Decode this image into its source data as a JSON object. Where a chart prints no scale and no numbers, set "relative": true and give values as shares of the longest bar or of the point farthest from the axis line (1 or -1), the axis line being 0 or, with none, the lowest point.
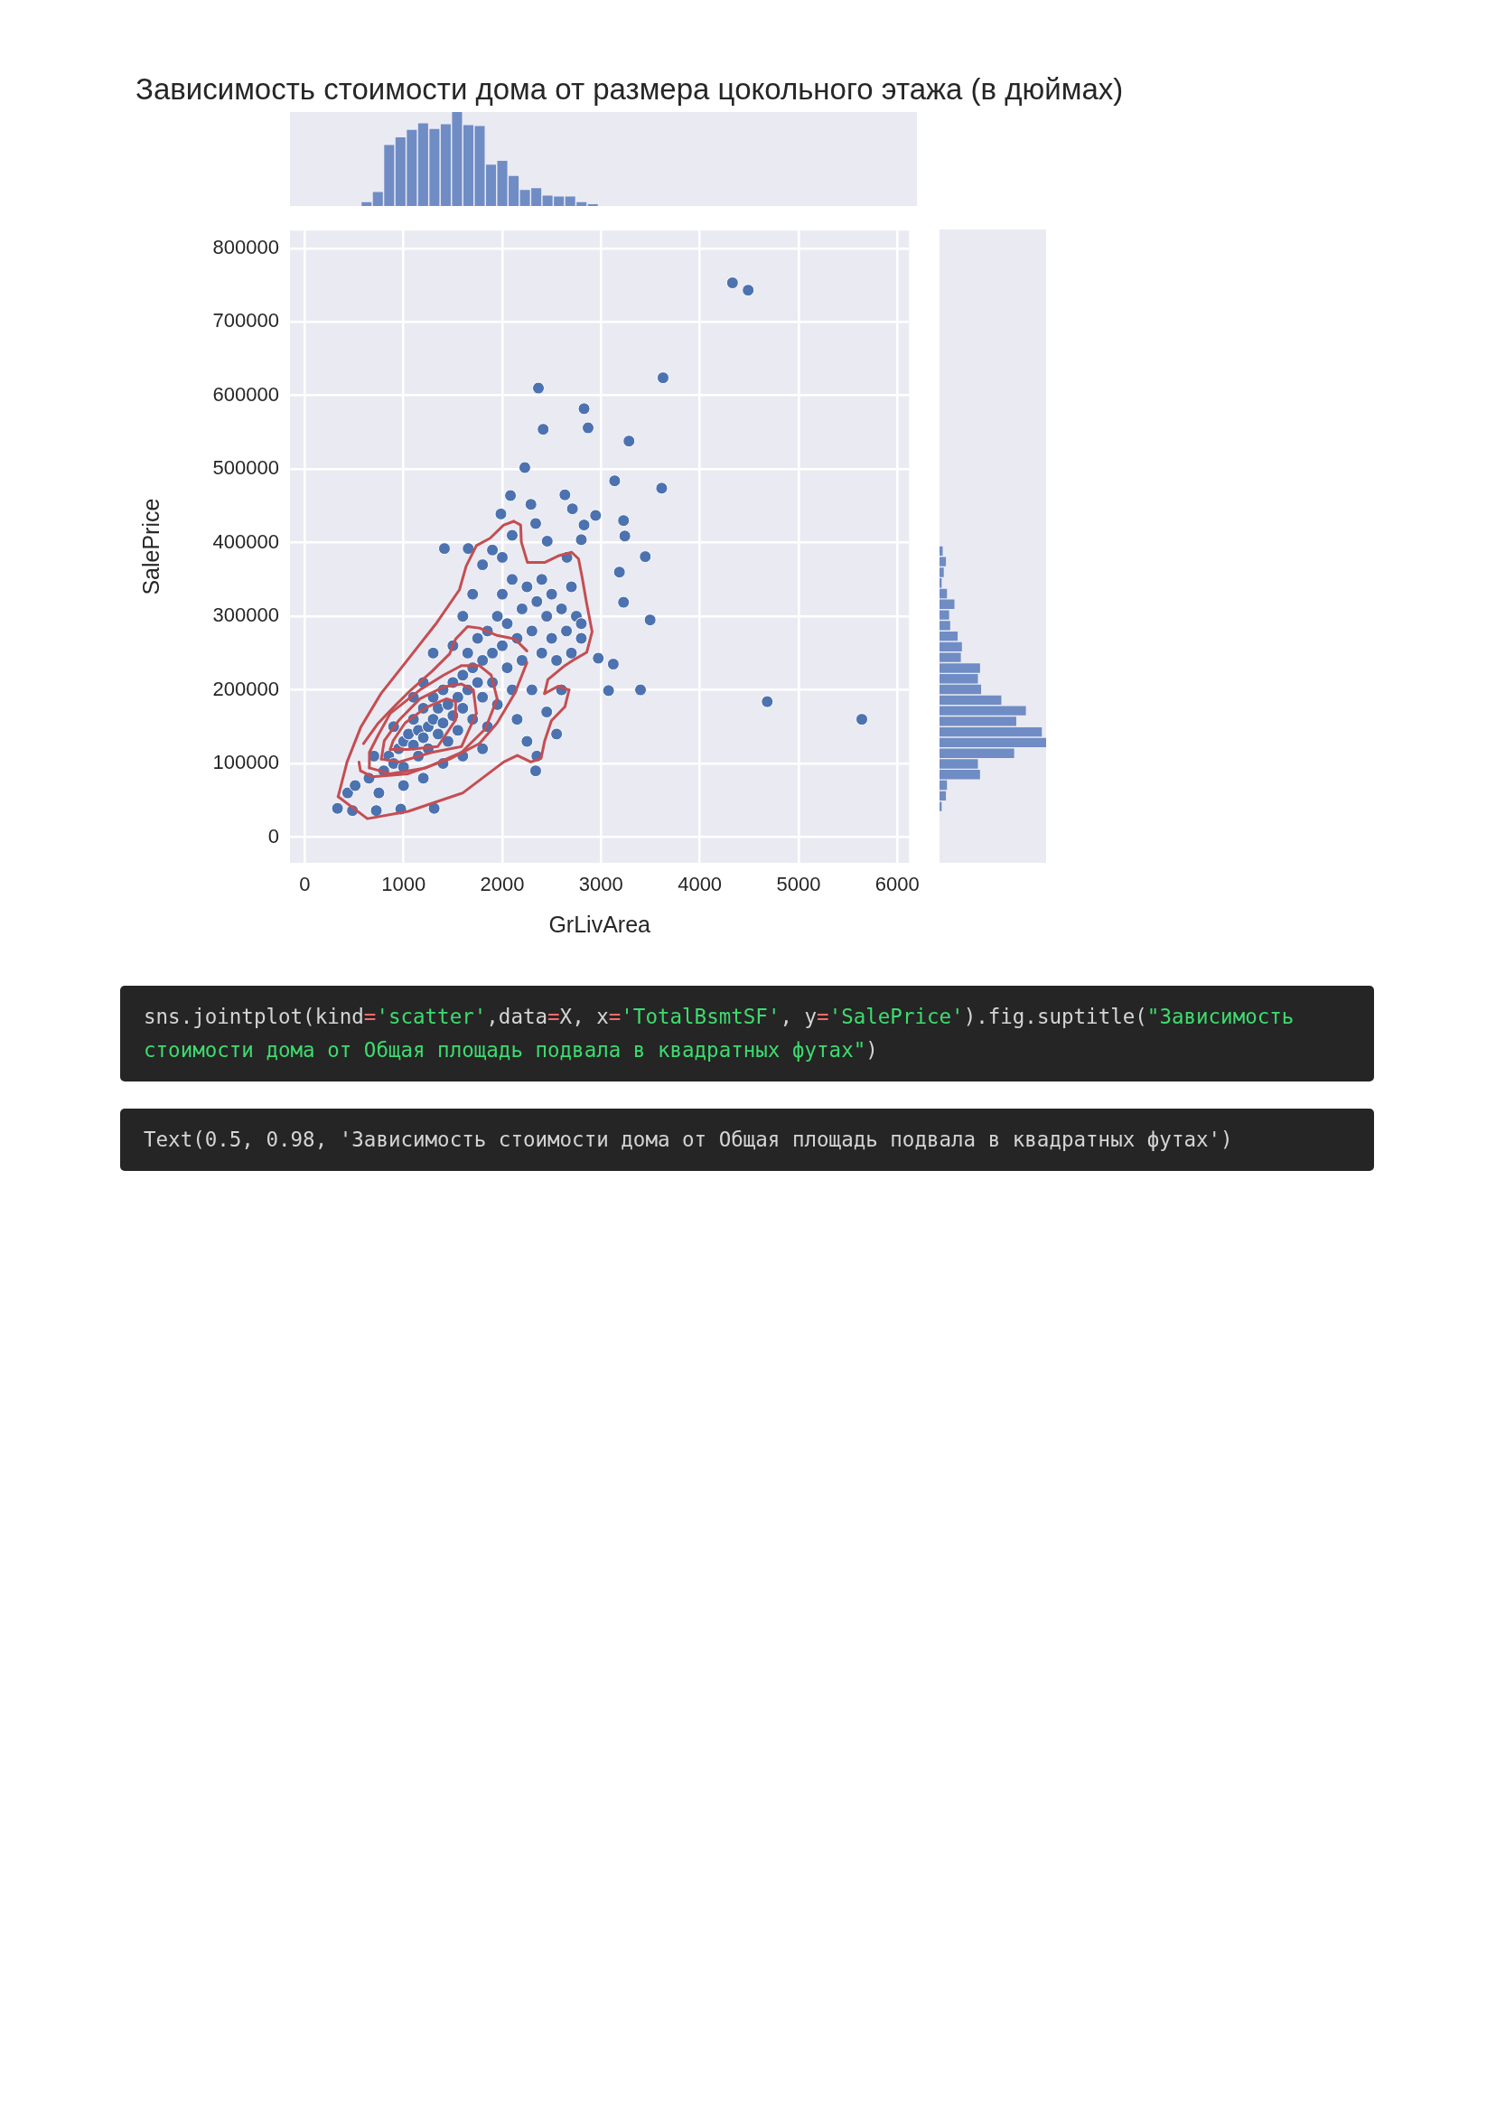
{
  "chart_data": [
    {
      "type": "bar",
      "title": "Зависимость стоимости дома от размера цокольного этажа (в дюймах)",
      "relative": true,
      "color": "#6f8cc4",
      "categories": [
        null,
        null,
        null,
        null,
        null,
        null,
        null,
        null,
        null,
        null,
        null,
        null,
        null,
        null,
        null,
        null,
        null,
        null,
        null,
        null,
        null
      ],
      "values": [
        0.04,
        0.15,
        0.65,
        0.73,
        0.81,
        0.88,
        0.82,
        0.87,
        1.0,
        0.86,
        0.85,
        0.44,
        0.48,
        0.32,
        0.17,
        0.19,
        0.11,
        0.1,
        0.1,
        0.04,
        0.02
      ],
      "tick_labels": false
    },
    {
      "type": "scatter",
      "xlabel": "GrLivArea",
      "ylabel": "SalePrice",
      "xlim": [
        -150,
        6120
      ],
      "ylim": [
        -35000,
        824000
      ],
      "xticks": [
        0,
        1000,
        2000,
        3000,
        4000,
        5000,
        6000
      ],
      "yticks": [
        0,
        100000,
        200000,
        300000,
        400000,
        500000,
        600000,
        700000,
        800000
      ],
      "grid": true,
      "marker": "circle",
      "series": [
        {
          "color": "#4c72b0",
          "x": [
            4331,
            4490,
            3628,
            2366,
            2828,
            2869,
            2414,
            3283,
            2228,
            3138,
            3614,
            2083,
            2634,
            2290,
            2710,
            1986,
            2945,
            3228,
            2828,
            2338,
            2800,
            3241,
            2455,
            1414,
            1655,
            3448,
            2655,
            3186,
            3228,
            3497,
            2972,
            3124,
            3076,
            3400,
            4683,
            5641,
            2338,
            1310,
            331,
            483,
            724,
            972,
            434,
            510,
            800,
            850,
            900,
            950,
            1000,
            1000,
            1050,
            1100,
            1100,
            1150,
            1150,
            1200,
            1200,
            1250,
            1250,
            1300,
            1300,
            1350,
            1350,
            1400,
            1400,
            1450,
            1450,
            1500,
            1500,
            1550,
            1550,
            1600,
            1600,
            1650,
            1650,
            1700,
            1700,
            1750,
            1750,
            1800,
            1800,
            1850,
            1850,
            1900,
            1900,
            1950,
            1950,
            2000,
            2000,
            2050,
            2050,
            2100,
            2100,
            2150,
            2150,
            2200,
            2200,
            2250,
            2250,
            2300,
            2300,
            2350,
            2350,
            2400,
            2400,
            2450,
            2450,
            2500,
            2500,
            2550,
            2550,
            2600,
            2600,
            2650,
            2700,
            2700,
            2750,
            2800,
            2800,
            1500,
            1600,
            1700,
            1800,
            1900,
            2000,
            2100,
            1300,
            1200,
            1100,
            900,
            700,
            650,
            750,
            1000,
            1200,
            1400,
            1600,
            1800
          ],
          "values": [
            753000,
            743000,
            624000,
            610000,
            582000,
            556000,
            554000,
            538000,
            502000,
            484000,
            474000,
            464000,
            465000,
            452000,
            446000,
            439000,
            437000,
            430000,
            424000,
            426000,
            404000,
            409000,
            402000,
            392000,
            392000,
            381000,
            380000,
            360000,
            319000,
            295000,
            243000,
            235000,
            199000,
            200000,
            184000,
            160000,
            90000,
            39000,
            39000,
            36000,
            36000,
            38000,
            60000,
            70000,
            90000,
            110000,
            100000,
            120000,
            130000,
            95000,
            140000,
            125000,
            160000,
            110000,
            145000,
            135000,
            175000,
            150000,
            120000,
            160000,
            190000,
            140000,
            175000,
            200000,
            155000,
            180000,
            130000,
            210000,
            165000,
            190000,
            145000,
            220000,
            175000,
            200000,
            250000,
            230000,
            160000,
            210000,
            270000,
            240000,
            190000,
            280000,
            150000,
            250000,
            210000,
            300000,
            180000,
            260000,
            330000,
            230000,
            290000,
            350000,
            200000,
            270000,
            160000,
            310000,
            240000,
            340000,
            130000,
            280000,
            200000,
            320000,
            110000,
            250000,
            350000,
            300000,
            170000,
            270000,
            330000,
            240000,
            140000,
            310000,
            200000,
            280000,
            250000,
            340000,
            300000,
            270000,
            290000,
            260000,
            300000,
            330000,
            370000,
            390000,
            380000,
            410000,
            250000,
            210000,
            190000,
            150000,
            110000,
            80000,
            60000,
            70000,
            80000,
            100000,
            110000,
            120000
          ]
        },
        {
          "type": "line",
          "marker": "none",
          "color": "#c44e52",
          "x": [
            338,
            634,
            1048,
            1600,
            2014,
            2152,
            2290,
            2393,
            2428,
            2497,
            2634,
            2676
          ],
          "values": [
            55000,
            25000,
            35000,
            60000,
            102000,
            111000,
            102000,
            107000,
            130000,
            158000,
            177000,
            200000
          ]
        },
        {
          "type": "line",
          "marker": "none",
          "color": "#c44e52",
          "x": [
            2428,
            2566,
            2676
          ],
          "values": [
            195000,
            205000,
            200000
          ]
        },
        {
          "type": "line",
          "marker": "none",
          "color": "#c44e52",
          "x": [
            2428,
            2462,
            2634,
            2738,
            2855,
            2910,
            2855,
            2807,
            2772,
            2703,
            2566,
            2428,
            2255,
            2193,
            2186,
            2117
          ],
          "values": [
            195000,
            214000,
            233000,
            242000,
            251000,
            279000,
            317000,
            354000,
            378000,
            387000,
            382000,
            373000,
            373000,
            401000,
            424000,
            429000
          ]
        },
        {
          "type": "line",
          "marker": "none",
          "color": "#c44e52",
          "x": [
            338,
            428,
            566,
            772,
            1048,
            1324,
            1566,
            1634,
            1738,
            1876,
            2014,
            2117
          ],
          "values": [
            55000,
            102000,
            149000,
            195000,
            242000,
            289000,
            336000,
            368000,
            396000,
            406000,
            424000,
            429000
          ]
        },
        {
          "type": "line",
          "marker": "none",
          "color": "#c44e52",
          "x": [
            549,
            564,
            684,
            1045,
            1467,
            1768,
            1948,
            2129,
            2249
          ],
          "values": [
            102000,
            90000,
            82000,
            86000,
            106000,
            127000,
            155000,
            196000,
            237000
          ]
        },
        {
          "type": "line",
          "marker": "none",
          "color": "#c44e52",
          "x": [
            594,
            745,
            925,
            1076,
            1287,
            1467,
            1527,
            1648,
            1768,
            1948,
            2129,
            2249
          ],
          "values": [
            127000,
            155000,
            180000,
            200000,
            225000,
            249000,
            269000,
            286000,
            284000,
            274000,
            269000,
            253000
          ]
        },
        {
          "type": "line",
          "marker": "none",
          "color": "#c44e52",
          "x": [
            654,
            865,
            1226,
            1587,
            1828,
            1948
          ],
          "values": [
            94000,
            86000,
            94000,
            115000,
            147000,
            188000
          ]
        },
        {
          "type": "line",
          "marker": "none",
          "color": "#c44e52",
          "x": [
            654,
            654,
            745,
            865,
            1166,
            1406,
            1587,
            1768,
            1888,
            1948
          ],
          "values": [
            94000,
            115000,
            139000,
            168000,
            200000,
            220000,
            233000,
            233000,
            220000,
            188000
          ]
        },
        {
          "type": "line",
          "marker": "none",
          "color": "#c44e52",
          "x": [
            775,
            955,
            1286,
            1587,
            1737
          ],
          "values": [
            106000,
            102000,
            115000,
            123000,
            168000
          ]
        },
        {
          "type": "line",
          "marker": "none",
          "color": "#c44e52",
          "x": [
            775,
            805,
            955,
            1166,
            1406,
            1587,
            1707,
            1737
          ],
          "values": [
            106000,
            131000,
            159000,
            188000,
            204000,
            208000,
            200000,
            168000
          ]
        },
        {
          "type": "line",
          "marker": "none",
          "color": "#c44e52",
          "x": [
            865,
            1045,
            1347,
            1527,
            1527
          ],
          "values": [
            119000,
            119000,
            123000,
            159000,
            184000
          ]
        },
        {
          "type": "line",
          "marker": "none",
          "color": "#c44e52",
          "x": [
            865,
            895,
            1015,
            1226,
            1437,
            1527
          ],
          "values": [
            119000,
            131000,
            155000,
            176000,
            188000,
            184000
          ]
        }
      ],
      "annotations": [
        "sns.jointplot(kind='scatter',data=X, x='TotalBsmtSF', y='SalePrice').fig.suptitle(\"Зависимость стоимости дома от Общая площадь подвала в квадратных футах\")",
        "Text(0.5, 0.98, 'Зависимость стоимости дома от Общая площадь подвала в квадратных футах')"
      ]
    },
    {
      "type": "bar",
      "orientation": "horizontal",
      "relative": true,
      "color": "#6f8cc4",
      "categories": [
        null,
        null,
        null,
        null,
        null,
        null,
        null,
        null,
        null,
        null,
        null,
        null,
        null,
        null,
        null,
        null,
        null,
        null,
        null,
        null,
        null,
        null,
        null,
        null,
        null
      ],
      "values": [
        0.03,
        0.06,
        0.04,
        0.02,
        0.07,
        0.14,
        0.09,
        0.1,
        0.17,
        0.21,
        0.2,
        0.38,
        0.36,
        0.39,
        0.58,
        0.81,
        0.72,
        0.96,
        1.0,
        0.7,
        0.36,
        0.38,
        0.07,
        0.06,
        0.02
      ],
      "tick_labels": false
    }
  ]
}
